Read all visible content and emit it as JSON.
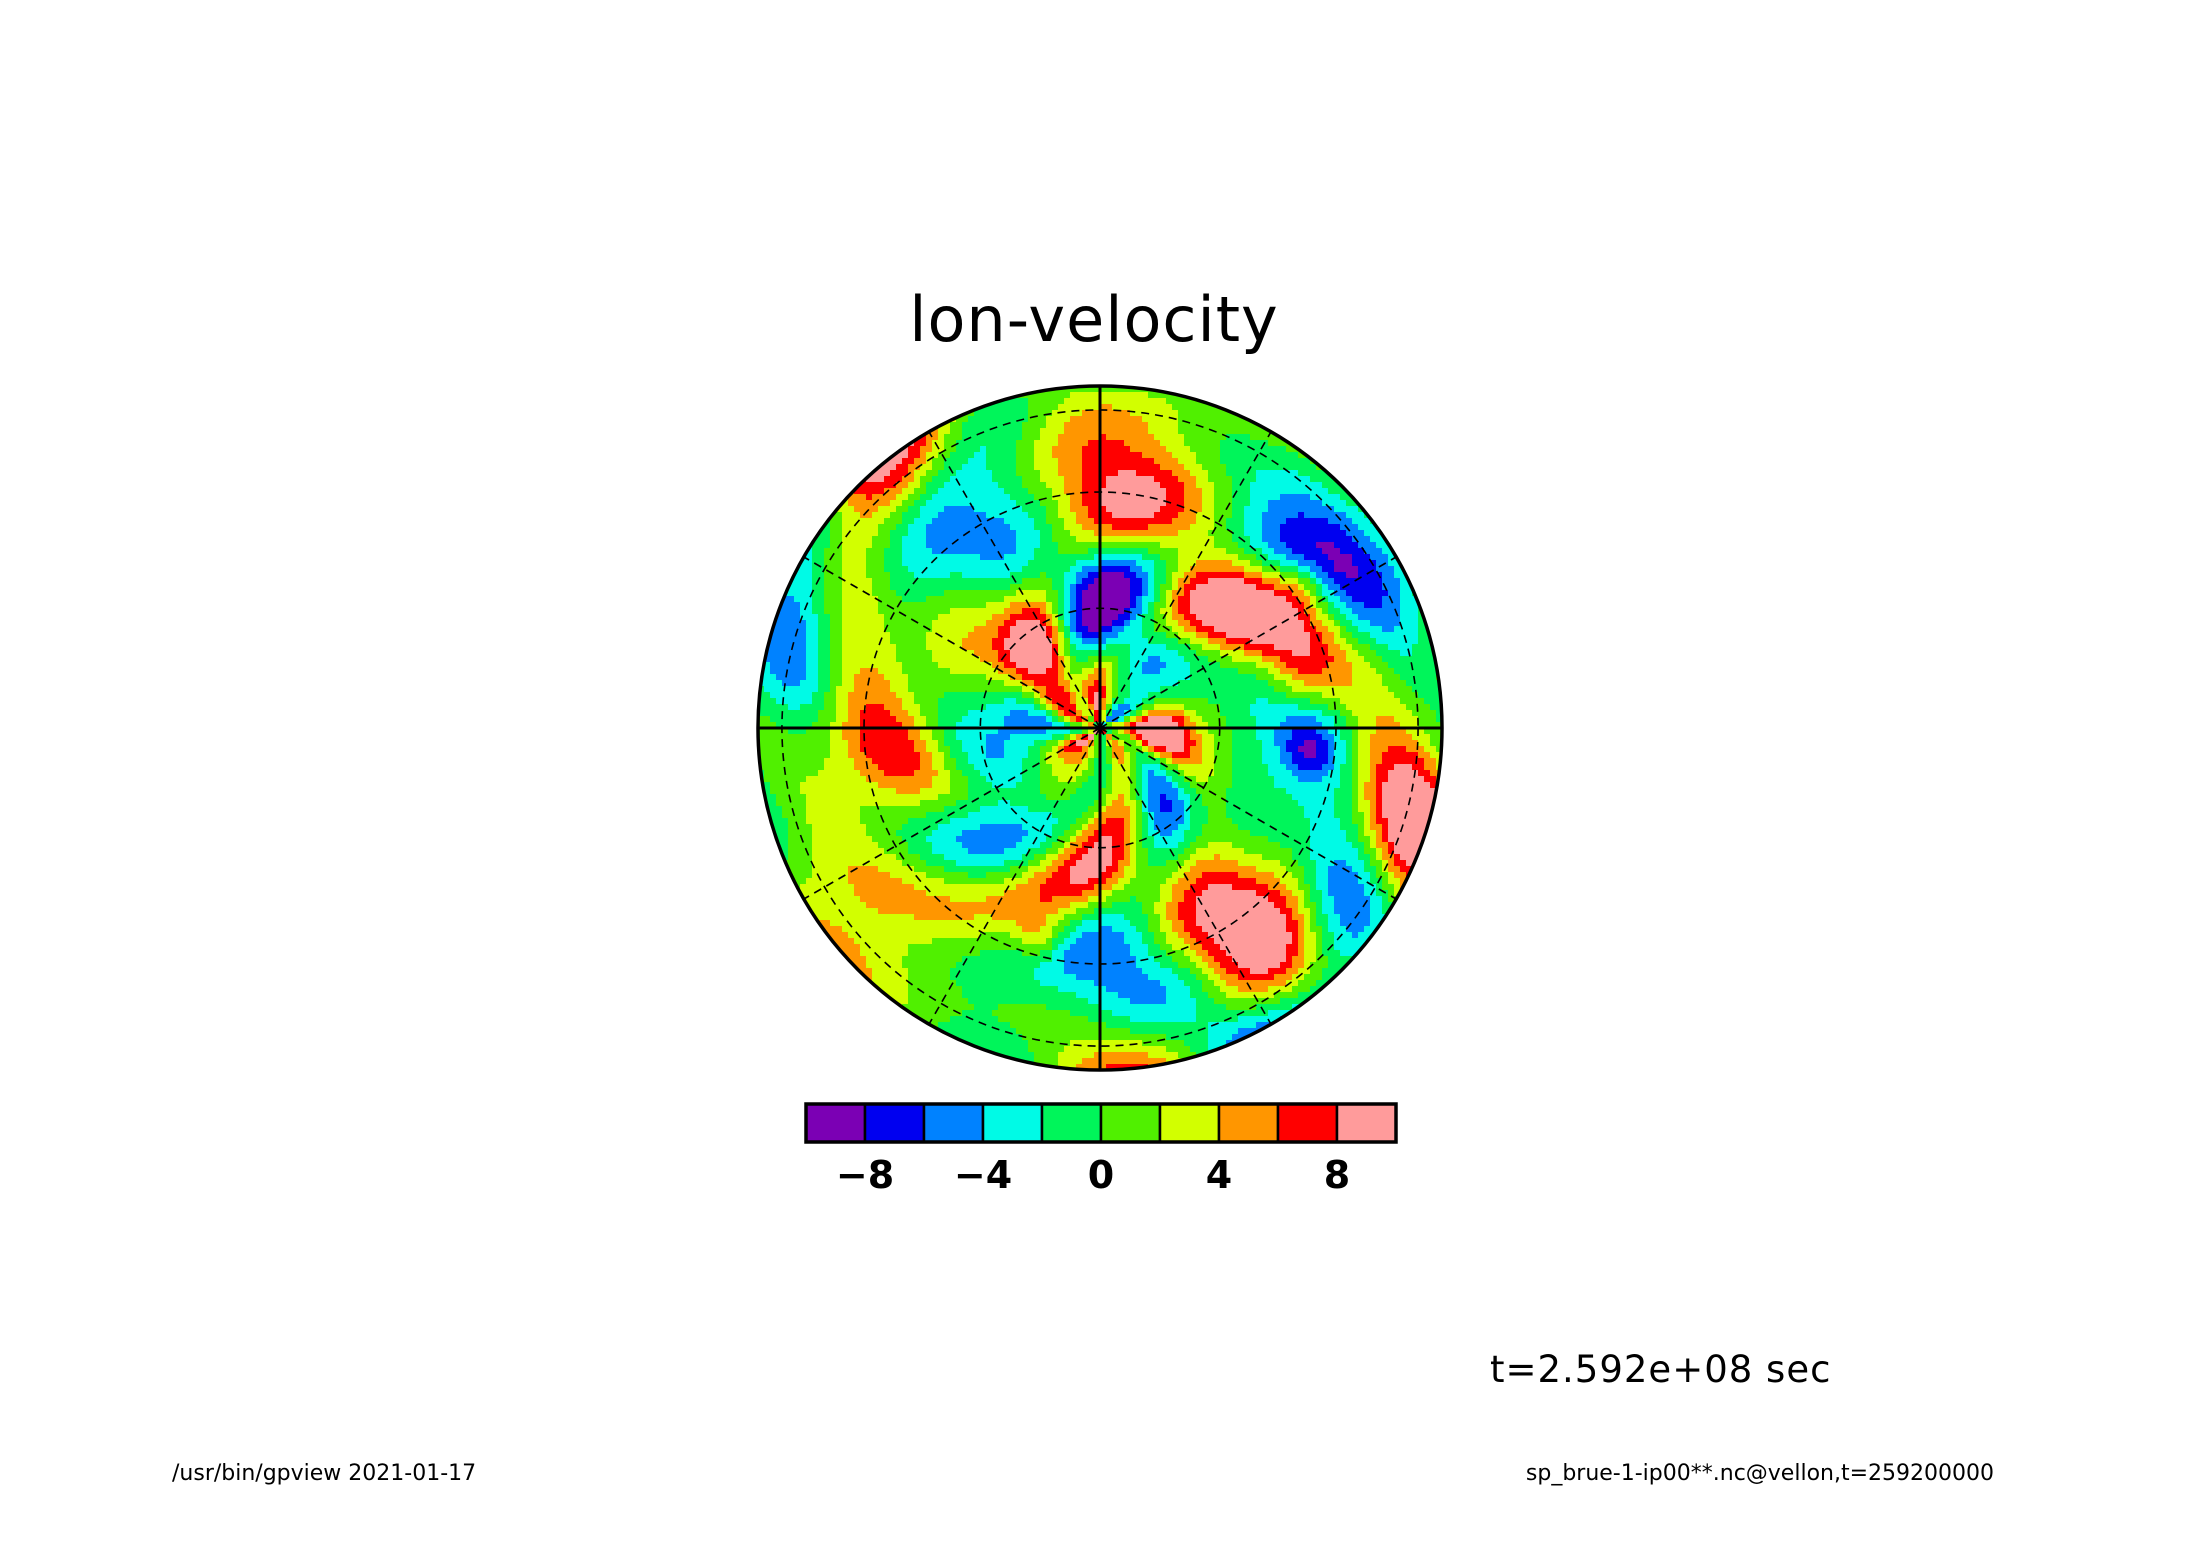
{
  "chart_data": {
    "type": "heatmap",
    "title": "lon-velocity",
    "projection": "polar stereographic (pole-centered)",
    "grid": true,
    "colorbar": {
      "placement": "bottom",
      "colors": [
        "#7b00b4",
        "#0000f0",
        "#0082ff",
        "#00fae6",
        "#00f55a",
        "#50f000",
        "#d2ff00",
        "#ff9600",
        "#ff0000",
        "#ff9b9b"
      ],
      "boundaries": [
        -10,
        -8,
        -6,
        -4,
        -2,
        0,
        2,
        4,
        6,
        8,
        10
      ],
      "tick_values": [
        -8,
        -4,
        0,
        4,
        8
      ],
      "tick_labels": [
        "-8",
        "-4",
        "0",
        "4",
        "8"
      ]
    },
    "value_range": [
      -10,
      10
    ]
  },
  "annotations": {
    "time": "t=2.592e+08 sec",
    "footer_left": "/usr/bin/gpview  2021-01-17",
    "footer_right": "sp_brue-1-ip00**.nc@vellon,t=259200000"
  }
}
